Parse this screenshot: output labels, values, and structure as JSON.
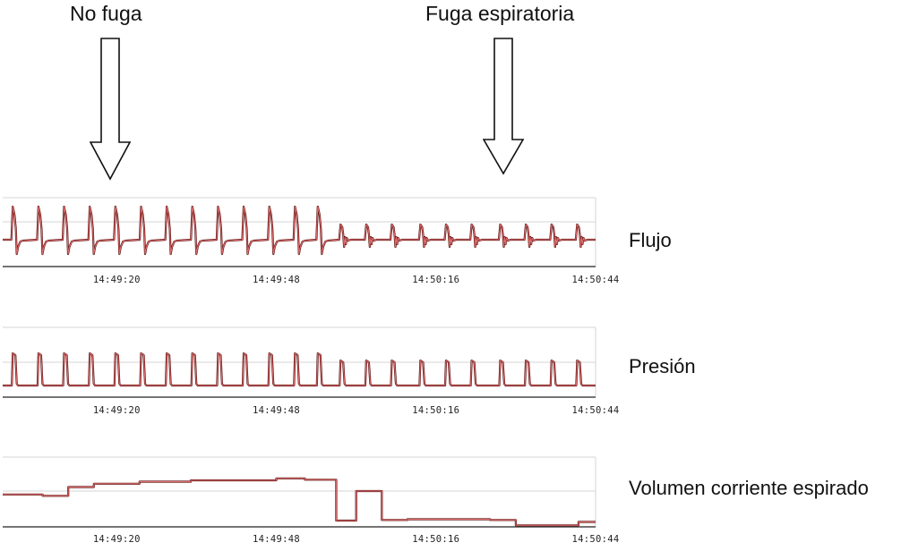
{
  "annotations": {
    "left": "No fuga",
    "right": "Fuga espiratoria"
  },
  "colors": {
    "trace_dark": "#5a0f0f",
    "trace_light": "#e07070",
    "gridline": "#d6d6d6",
    "axis": "#222222"
  },
  "chart_data": [
    {
      "type": "line",
      "title": "",
      "label": "Flujo",
      "x_ticks": [
        "14:49:20",
        "14:49:48",
        "14:50:16",
        "14:50:44"
      ],
      "x_tick_seconds": [
        20,
        48,
        76,
        104
      ],
      "x_range_seconds": [
        0,
        104
      ],
      "grid": true,
      "leak_start_seconds": 58,
      "breaths_no_leak_seconds": [
        2,
        6.5,
        11,
        15.5,
        20,
        24.5,
        29,
        33.5,
        38,
        42.5,
        47,
        51.5,
        55.5
      ],
      "breaths_leak_seconds": [
        59.5,
        64,
        68.5,
        73.5,
        78,
        82.5,
        87.5,
        92,
        96.5,
        101
      ]
    },
    {
      "type": "line",
      "title": "",
      "label": "Presión",
      "x_ticks": [
        "14:49:20",
        "14:49:48",
        "14:50:16",
        "14:50:44"
      ],
      "x_tick_seconds": [
        20,
        48,
        76,
        104
      ],
      "x_range_seconds": [
        0,
        104
      ],
      "grid": true,
      "breaths_seconds": [
        2,
        6.5,
        11,
        15.5,
        20,
        24.5,
        29,
        33.5,
        38,
        42.5,
        47,
        51.5,
        55.5,
        59.5,
        64,
        68.5,
        73.5,
        78,
        82.5,
        87.5,
        92,
        96.5,
        101
      ]
    },
    {
      "type": "line",
      "title": "",
      "label": "Volumen corriente espirado",
      "x_ticks": [
        "14:49:20",
        "14:49:48",
        "14:50:16",
        "14:50:44"
      ],
      "x_tick_seconds": [
        20,
        48,
        76,
        104
      ],
      "x_range_seconds": [
        0,
        104
      ],
      "grid": true,
      "step_points": [
        [
          0,
          0.47
        ],
        [
          7,
          0.47
        ],
        [
          7,
          0.45
        ],
        [
          11.5,
          0.45
        ],
        [
          11.5,
          0.58
        ],
        [
          16,
          0.58
        ],
        [
          16,
          0.63
        ],
        [
          24,
          0.63
        ],
        [
          24,
          0.66
        ],
        [
          33,
          0.66
        ],
        [
          33,
          0.68
        ],
        [
          48,
          0.68
        ],
        [
          48,
          0.71
        ],
        [
          53,
          0.71
        ],
        [
          53,
          0.69
        ],
        [
          58.5,
          0.69
        ],
        [
          58.5,
          0.08
        ],
        [
          62,
          0.08
        ],
        [
          62,
          0.52
        ],
        [
          66.5,
          0.52
        ],
        [
          66.5,
          0.09
        ],
        [
          71,
          0.09
        ],
        [
          71,
          0.1
        ],
        [
          85.5,
          0.1
        ],
        [
          85.5,
          0.09
        ],
        [
          90,
          0.09
        ],
        [
          90,
          0.01
        ],
        [
          101,
          0.01
        ],
        [
          101,
          0.06
        ],
        [
          104,
          0.06
        ]
      ]
    }
  ]
}
